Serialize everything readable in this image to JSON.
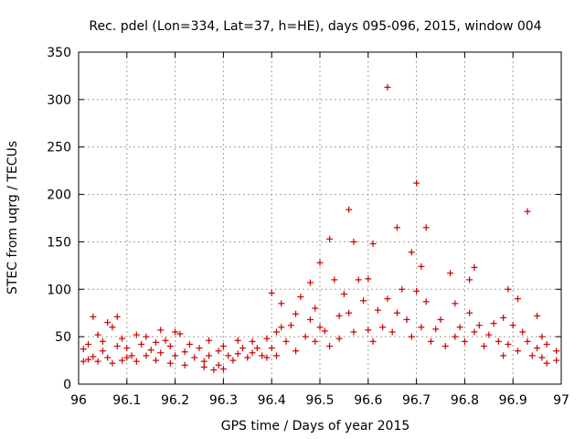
{
  "chart_data": {
    "type": "scatter",
    "title": "Rec. pdel (Lon=334, Lat=37, h=HE), days 095-096, 2015, window 004",
    "xlabel": "GPS time / Days of year 2015",
    "ylabel": "STEC from uqrg / TECUs",
    "xlim": [
      96,
      97
    ],
    "ylim": [
      0,
      350
    ],
    "xticks": [
      96,
      96.1,
      96.2,
      96.3,
      96.4,
      96.5,
      96.6,
      96.7,
      96.8,
      96.9,
      97
    ],
    "xtick_labels": [
      "96",
      "96.1",
      "96.2",
      "96.3",
      "96.4",
      "96.5",
      "96.6",
      "96.7",
      "96.8",
      "96.9",
      "97"
    ],
    "yticks": [
      0,
      50,
      100,
      150,
      200,
      250,
      300,
      350
    ],
    "ytick_labels": [
      "0",
      "50",
      "100",
      "150",
      "200",
      "250",
      "300",
      "350"
    ],
    "grid": true,
    "marker": "+",
    "color": "#cc0000",
    "series": [
      {
        "name": "STEC",
        "points": [
          [
            96.01,
            24
          ],
          [
            96.01,
            37
          ],
          [
            96.02,
            26
          ],
          [
            96.02,
            42
          ],
          [
            96.03,
            71
          ],
          [
            96.03,
            29
          ],
          [
            96.04,
            52
          ],
          [
            96.04,
            24
          ],
          [
            96.05,
            45
          ],
          [
            96.05,
            35
          ],
          [
            96.06,
            65
          ],
          [
            96.06,
            28
          ],
          [
            96.07,
            60
          ],
          [
            96.07,
            22
          ],
          [
            96.08,
            71
          ],
          [
            96.08,
            40
          ],
          [
            96.09,
            48
          ],
          [
            96.09,
            25
          ],
          [
            96.1,
            38
          ],
          [
            96.1,
            28
          ],
          [
            96.11,
            30
          ],
          [
            96.12,
            52
          ],
          [
            96.12,
            24
          ],
          [
            96.13,
            42
          ],
          [
            96.14,
            50
          ],
          [
            96.14,
            30
          ],
          [
            96.15,
            36
          ],
          [
            96.16,
            44
          ],
          [
            96.16,
            25
          ],
          [
            96.17,
            57
          ],
          [
            96.17,
            33
          ],
          [
            96.18,
            46
          ],
          [
            96.19,
            40
          ],
          [
            96.19,
            22
          ],
          [
            96.2,
            55
          ],
          [
            96.2,
            30
          ],
          [
            96.21,
            53
          ],
          [
            96.22,
            34
          ],
          [
            96.22,
            20
          ],
          [
            96.23,
            42
          ],
          [
            96.24,
            28
          ],
          [
            96.25,
            38
          ],
          [
            96.26,
            24
          ],
          [
            96.26,
            18
          ],
          [
            96.27,
            46
          ],
          [
            96.27,
            30
          ],
          [
            96.28,
            15
          ],
          [
            96.29,
            35
          ],
          [
            96.29,
            20
          ],
          [
            96.3,
            40
          ],
          [
            96.3,
            16
          ],
          [
            96.31,
            30
          ],
          [
            96.32,
            25
          ],
          [
            96.33,
            46
          ],
          [
            96.33,
            32
          ],
          [
            96.34,
            38
          ],
          [
            96.35,
            28
          ],
          [
            96.36,
            45
          ],
          [
            96.36,
            33
          ],
          [
            96.37,
            38
          ],
          [
            96.38,
            30
          ],
          [
            96.39,
            48
          ],
          [
            96.39,
            28
          ],
          [
            96.4,
            96
          ],
          [
            96.4,
            38
          ],
          [
            96.41,
            55
          ],
          [
            96.41,
            30
          ],
          [
            96.42,
            85
          ],
          [
            96.42,
            60
          ],
          [
            96.43,
            45
          ],
          [
            96.44,
            62
          ],
          [
            96.45,
            74
          ],
          [
            96.45,
            35
          ],
          [
            96.46,
            92
          ],
          [
            96.47,
            50
          ],
          [
            96.48,
            107
          ],
          [
            96.48,
            68
          ],
          [
            96.49,
            80
          ],
          [
            96.49,
            45
          ],
          [
            96.5,
            128
          ],
          [
            96.5,
            60
          ],
          [
            96.51,
            56
          ],
          [
            96.52,
            153
          ],
          [
            96.52,
            40
          ],
          [
            96.53,
            110
          ],
          [
            96.54,
            72
          ],
          [
            96.54,
            48
          ],
          [
            96.55,
            95
          ],
          [
            96.56,
            184
          ],
          [
            96.56,
            75
          ],
          [
            96.57,
            150
          ],
          [
            96.57,
            55
          ],
          [
            96.58,
            110
          ],
          [
            96.59,
            88
          ],
          [
            96.6,
            111
          ],
          [
            96.6,
            57
          ],
          [
            96.61,
            148
          ],
          [
            96.61,
            45
          ],
          [
            96.62,
            78
          ],
          [
            96.63,
            60
          ],
          [
            96.64,
            313
          ],
          [
            96.64,
            90
          ],
          [
            96.65,
            55
          ],
          [
            96.66,
            165
          ],
          [
            96.66,
            75
          ],
          [
            96.67,
            100
          ],
          [
            96.68,
            68
          ],
          [
            96.69,
            139
          ],
          [
            96.69,
            50
          ],
          [
            96.7,
            212
          ],
          [
            96.7,
            98
          ],
          [
            96.71,
            124
          ],
          [
            96.71,
            60
          ],
          [
            96.72,
            165
          ],
          [
            96.72,
            87
          ],
          [
            96.73,
            45
          ],
          [
            96.74,
            58
          ],
          [
            96.75,
            68
          ],
          [
            96.76,
            40
          ],
          [
            96.77,
            117
          ],
          [
            96.78,
            85
          ],
          [
            96.78,
            50
          ],
          [
            96.79,
            60
          ],
          [
            96.8,
            45
          ],
          [
            96.81,
            110
          ],
          [
            96.81,
            75
          ],
          [
            96.82,
            123
          ],
          [
            96.82,
            55
          ],
          [
            96.83,
            62
          ],
          [
            96.84,
            40
          ],
          [
            96.85,
            52
          ],
          [
            96.86,
            64
          ],
          [
            96.87,
            45
          ],
          [
            96.88,
            70
          ],
          [
            96.88,
            30
          ],
          [
            96.89,
            100
          ],
          [
            96.89,
            42
          ],
          [
            96.9,
            62
          ],
          [
            96.91,
            90
          ],
          [
            96.91,
            35
          ],
          [
            96.92,
            55
          ],
          [
            96.93,
            182
          ],
          [
            96.93,
            45
          ],
          [
            96.94,
            30
          ],
          [
            96.95,
            72
          ],
          [
            96.95,
            38
          ],
          [
            96.96,
            50
          ],
          [
            96.96,
            28
          ],
          [
            96.97,
            42
          ],
          [
            96.97,
            22
          ],
          [
            96.99,
            35
          ],
          [
            96.99,
            25
          ]
        ]
      }
    ]
  }
}
